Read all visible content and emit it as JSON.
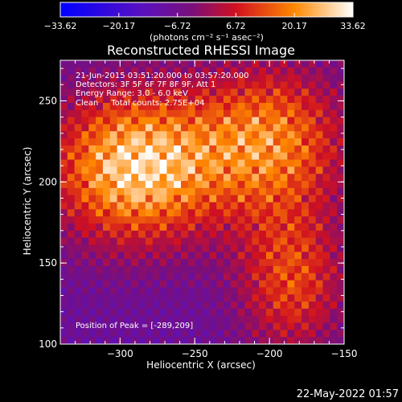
{
  "chart_data": {
    "type": "heatmap",
    "title": "Reconstructed RHESSI Image",
    "xlabel": "Heliocentric X (arcsec)",
    "ylabel": "Heliocentric Y (arcsec)",
    "xlim": [
      -340,
      -150
    ],
    "ylim": [
      100,
      275
    ],
    "x_ticks": [
      -300,
      -250,
      -200,
      -150
    ],
    "x_tick_labels": [
      "−300",
      "−250",
      "−200",
      "−150"
    ],
    "y_ticks": [
      100,
      150,
      200,
      250
    ],
    "y_tick_labels": [
      "100",
      "150",
      "200",
      "250"
    ],
    "colorbar": {
      "min": -33.62,
      "max": 33.62,
      "tick_values": [
        -33.62,
        -20.17,
        -6.72,
        6.72,
        20.17,
        33.62
      ],
      "tick_labels": [
        "−33.62",
        "−20.17",
        "−6.72",
        "6.72",
        "20.17",
        "33.62"
      ],
      "unit_label": "(photons cm⁻² s⁻¹ asec⁻²)"
    },
    "annotations": [
      "21-Jun-2015 03:51:20.000 to 03:57:20.000",
      "Detectors: 3F 5F 6F 7F 8F 9F, Att 1",
      "Energy Range: 3.0 - 6.0 keV",
      "Clean     Total counts: 2.75E+04"
    ],
    "peak_label": "Position of Peak = [-289,209]",
    "peak_position": [
      -289,
      209
    ],
    "colormap": [
      "#0000ff",
      "#6a0dad",
      "#ff0000",
      "#ffa500",
      "#ffffff"
    ],
    "grid": false
  },
  "footer": {
    "timestamp": "22-May-2022 01:57"
  }
}
